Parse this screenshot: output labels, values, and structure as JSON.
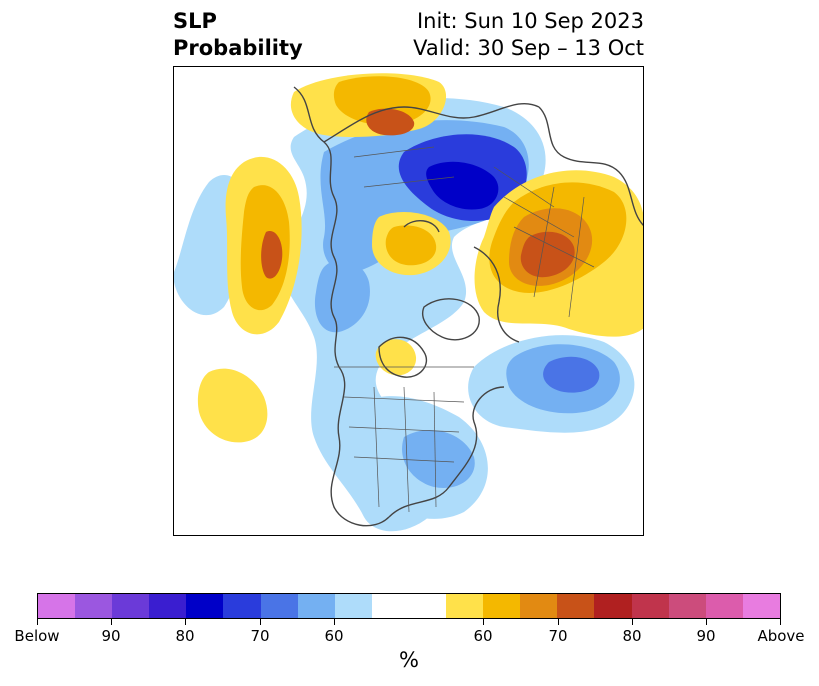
{
  "title": {
    "left_line1": "SLP",
    "left_line2": "Probability",
    "right_line1": "Init: Sun 10 Sep 2023",
    "right_line2": "Valid: 30 Sep – 13 Oct"
  },
  "colorbar": {
    "colors": [
      "#d674e8",
      "#9b57e0",
      "#6b3ad8",
      "#3a1ed0",
      "#0000c8",
      "#2a3cdc",
      "#4a74e6",
      "#74b0f2",
      "#aedcfa",
      "#ffffff",
      "#ffffff",
      "#ffe14a",
      "#f4b800",
      "#e28a12",
      "#c85218",
      "#b02020",
      "#c0344c",
      "#cc4c7c",
      "#dc5cac",
      "#e87ce0"
    ],
    "ticks": [
      "Below",
      "90",
      "80",
      "70",
      "60",
      "60",
      "70",
      "80",
      "90",
      "Above"
    ],
    "unit": "%"
  },
  "map": {
    "projection": "north-polar-stereographic",
    "features": [
      "coastlines",
      "country-borders",
      "us-state-borders"
    ],
    "legend_colors": {
      "below_strong": "#0000c8",
      "below_mid": "#4a74e6",
      "below_weak": "#aedcfa",
      "above_weak": "#ffe14a",
      "above_mid": "#f4b800",
      "above_strong": "#c85218"
    }
  }
}
